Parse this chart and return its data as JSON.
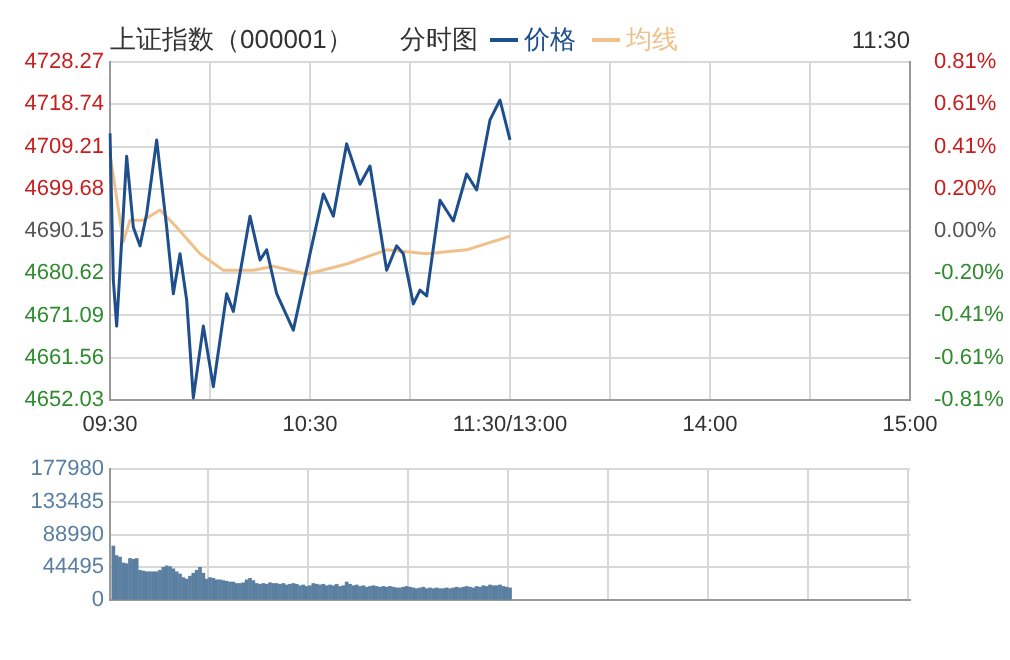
{
  "chart_data": [
    {
      "type": "line",
      "title": "上证指数（000001）",
      "subtitle": "分时图",
      "annotations": [
        "11:30"
      ],
      "legend": "top",
      "grid": true,
      "marker": "none",
      "line_style": "solid",
      "categories": [
        "09:30",
        null,
        null,
        null,
        null,
        null,
        null,
        null,
        null,
        null,
        null,
        null,
        null,
        null,
        null,
        null,
        null,
        null,
        null,
        null,
        null,
        null,
        null,
        null,
        null,
        null,
        null,
        null,
        null,
        null,
        null,
        null,
        null,
        null,
        null,
        null,
        null,
        null,
        null,
        null,
        null,
        null,
        null,
        null,
        null,
        null,
        null,
        null,
        null,
        null,
        null,
        null,
        null,
        null,
        null,
        null,
        null,
        null,
        null,
        null,
        "10:30",
        null,
        null,
        null,
        null,
        null,
        null,
        null,
        null,
        null,
        null,
        null,
        null,
        null,
        null,
        null,
        null,
        null,
        null,
        null,
        null,
        null,
        null,
        null,
        null,
        null,
        null,
        null,
        null,
        null,
        null,
        null,
        null,
        null,
        null,
        null,
        null,
        null,
        null,
        null,
        null,
        null,
        null,
        null,
        null,
        null,
        null,
        null,
        null,
        null,
        null,
        null,
        null,
        null,
        null,
        null,
        null,
        null,
        null,
        null,
        "11:30/13:00",
        null,
        null,
        null,
        null,
        null,
        null,
        null,
        null,
        null,
        null,
        null,
        null,
        null,
        null,
        null,
        null,
        null,
        null,
        null,
        null,
        null,
        null,
        null,
        null,
        null,
        null,
        null,
        null,
        null,
        null,
        null,
        null,
        null,
        null,
        null,
        null,
        null,
        null,
        null,
        null,
        null,
        null,
        null,
        null,
        null,
        null,
        null,
        null,
        null,
        null,
        null,
        null,
        null,
        null,
        null,
        null,
        null,
        null,
        null,
        "14:00",
        null,
        null,
        null,
        null,
        null,
        null,
        null,
        null,
        null,
        null,
        null,
        null,
        null,
        null,
        null,
        null,
        null,
        null,
        null,
        null,
        null,
        null,
        null,
        null,
        null,
        null,
        null,
        null,
        null,
        null,
        null,
        null,
        null,
        null,
        null,
        null,
        null,
        null,
        null,
        null,
        null,
        null,
        null,
        null,
        null,
        null,
        null,
        null,
        null,
        null,
        null,
        null,
        null,
        null,
        null,
        null,
        null,
        null,
        null,
        "15:00"
      ],
      "ylim": [
        4652.03,
        4728.27
      ],
      "yticks": [
        4652.03,
        4661.56,
        4671.09,
        4680.62,
        4690.15,
        4699.68,
        4709.21,
        4718.74,
        4728.27
      ],
      "y2lim": [
        -0.813,
        0.813
      ],
      "y2ticks": [
        {
          "value": -0.813,
          "label": "-0.81%"
        },
        {
          "value": -0.61,
          "label": "-0.61%"
        },
        {
          "value": -0.406,
          "label": "-0.41%"
        },
        {
          "value": -0.203,
          "label": "-0.20%"
        },
        {
          "value": 0,
          "label": "0.00%"
        },
        {
          "value": 0.203,
          "label": "0.20%"
        },
        {
          "value": 0.406,
          "label": "0.41%"
        },
        {
          "value": 0.61,
          "label": "0.61%"
        },
        {
          "value": 0.813,
          "label": "0.81%"
        }
      ],
      "series": [
        {
          "name": "价格",
          "color": "#1f4e8c",
          "values": [
            4712.2,
            4679.1,
            4668.7,
            null,
            null,
            4707,
            null,
            4691,
            null,
            4686.8,
            null,
            4694,
            null,
            null,
            4710.7,
            null,
            null,
            4691,
            null,
            4676,
            null,
            4685,
            null,
            4674.6,
            null,
            4652.5,
            null,
            null,
            4668.7,
            null,
            null,
            4655,
            null,
            null,
            null,
            4676,
            null,
            4672,
            null,
            null,
            null,
            null,
            4693.5,
            null,
            null,
            4683.6,
            null,
            4685.9,
            null,
            null,
            4676,
            null,
            null,
            null,
            null,
            4667.8,
            null,
            null,
            null,
            null,
            4685,
            null,
            null,
            null,
            4698.5,
            null,
            null,
            4693.5,
            null,
            null,
            null,
            4709.8,
            null,
            null,
            null,
            4700.7,
            null,
            null,
            4704.8,
            null,
            null,
            null,
            null,
            4681.3,
            null,
            null,
            4686.8,
            null,
            4685,
            null,
            null,
            4673.7,
            null,
            4676.8,
            null,
            4675.5,
            null,
            null,
            null,
            4697.1,
            null,
            null,
            null,
            4692.4,
            null,
            null,
            null,
            4703,
            null,
            null,
            4699.4,
            null,
            null,
            null,
            4715.2,
            null,
            null,
            4719.7,
            null,
            null,
            4710.7,
            null,
            null,
            null,
            null,
            null,
            null,
            null,
            null,
            null,
            null,
            null,
            null,
            null,
            null,
            null,
            null,
            null,
            null,
            null,
            null,
            null,
            null,
            null,
            null,
            null,
            null,
            null,
            null,
            null,
            null,
            null,
            null,
            null,
            null,
            null,
            null,
            null,
            null,
            null,
            null,
            null,
            null,
            null,
            null,
            null,
            null,
            null,
            null,
            null,
            null,
            null,
            null,
            null,
            null,
            null,
            null,
            null,
            null,
            null,
            null,
            null,
            null,
            null,
            null,
            null,
            null,
            null,
            null,
            null,
            null,
            null,
            null,
            null,
            null,
            null,
            null,
            null,
            null,
            null,
            null,
            null,
            null,
            null,
            null,
            null,
            null,
            null,
            null,
            null,
            null,
            null,
            null,
            null,
            null,
            null,
            null,
            null,
            null,
            null,
            null,
            null,
            null,
            null,
            null,
            null,
            null,
            null,
            null,
            null,
            null,
            null,
            null,
            null,
            null,
            null,
            null,
            null,
            null,
            null,
            null
          ]
        },
        {
          "name": "均线",
          "color": "#f0c08a",
          "values": [
            4707.5,
            null,
            null,
            null,
            4687.7,
            null,
            4692.6,
            null,
            null,
            null,
            4692.6,
            null,
            null,
            null,
            null,
            4694.9,
            null,
            null,
            null,
            null,
            4691,
            null,
            null,
            null,
            null,
            null,
            null,
            4685,
            null,
            null,
            null,
            null,
            null,
            null,
            4681.3,
            null,
            null,
            null,
            null,
            null,
            null,
            null,
            null,
            4681.3,
            null,
            null,
            null,
            null,
            null,
            4682.2,
            null,
            null,
            null,
            null,
            null,
            null,
            null,
            null,
            null,
            4680.4,
            null,
            null,
            null,
            null,
            null,
            null,
            null,
            null,
            null,
            null,
            null,
            4682.7,
            null,
            null,
            null,
            null,
            null,
            null,
            null,
            null,
            null,
            null,
            null,
            4685.9,
            null,
            null,
            null,
            null,
            null,
            null,
            null,
            null,
            null,
            null,
            null,
            4685,
            null,
            null,
            null,
            null,
            null,
            null,
            null,
            null,
            null,
            null,
            null,
            4685.9,
            null,
            null,
            null,
            null,
            null,
            null,
            null,
            null,
            null,
            null,
            null,
            null,
            4689,
            null,
            null,
            null,
            null,
            null,
            null,
            null,
            null,
            null,
            null,
            null,
            null,
            null,
            null,
            null,
            null,
            null,
            null,
            null,
            null,
            null,
            null,
            null,
            null,
            null,
            null,
            null,
            null,
            null,
            null,
            null,
            null,
            null,
            null,
            null,
            null,
            null,
            null,
            null,
            null,
            null,
            null,
            null,
            null,
            null,
            null,
            null,
            null,
            null,
            null,
            null,
            null,
            null,
            null,
            null,
            null,
            null,
            null,
            null,
            null,
            null,
            null,
            null,
            null,
            null,
            null,
            null,
            null,
            null,
            null,
            null,
            null,
            null,
            null,
            null,
            null,
            null,
            null,
            null,
            null,
            null,
            null,
            null,
            null,
            null,
            null,
            null,
            null,
            null,
            null,
            null,
            null,
            null,
            null,
            null,
            null,
            null,
            null,
            null,
            null,
            null,
            null,
            null,
            null,
            null,
            null,
            null,
            null,
            null,
            null,
            null,
            null,
            null,
            null,
            null,
            null,
            null,
            null,
            null,
            null
          ]
        }
      ]
    },
    {
      "type": "bar",
      "grid": true,
      "tick_labels": "y",
      "color": "#5b7fa0",
      "categories": [
        null,
        null,
        null,
        null,
        null,
        null,
        null,
        null,
        null,
        null,
        null,
        null,
        null,
        null,
        null,
        null,
        null,
        null,
        null,
        null,
        null,
        null,
        null,
        null,
        null,
        null,
        null,
        null,
        null,
        null,
        null,
        null,
        null,
        null,
        null,
        null,
        null,
        null,
        null,
        null,
        null,
        null,
        null,
        null,
        null,
        null,
        null,
        null,
        null,
        null,
        null,
        null,
        null,
        null,
        null,
        null,
        null,
        null,
        null,
        null,
        null,
        null,
        null,
        null,
        null,
        null,
        null,
        null,
        null,
        null,
        null,
        null,
        null,
        null,
        null,
        null,
        null,
        null,
        null,
        null,
        null,
        null,
        null,
        null,
        null,
        null,
        null,
        null,
        null,
        null,
        null,
        null,
        null,
        null,
        null,
        null,
        null,
        null,
        null,
        null,
        null,
        null,
        null,
        null,
        null,
        null,
        null,
        null,
        null,
        null,
        null,
        null,
        null,
        null,
        null,
        null,
        null,
        null,
        null,
        null,
        null,
        null,
        null,
        null,
        null,
        null,
        null,
        null,
        null,
        null,
        null,
        null,
        null,
        null,
        null,
        null,
        null,
        null,
        null,
        null,
        null,
        null,
        null,
        null,
        null,
        null,
        null,
        null,
        null,
        null,
        null,
        null,
        null,
        null,
        null,
        null,
        null,
        null,
        null,
        null,
        null,
        null,
        null,
        null,
        null,
        null,
        null,
        null,
        null,
        null,
        null,
        null,
        null,
        null,
        null,
        null,
        null,
        null,
        null,
        null,
        null,
        null,
        null,
        null,
        null,
        null,
        null,
        null,
        null,
        null,
        null,
        null,
        null,
        null,
        null,
        null,
        null,
        null,
        null,
        null,
        null,
        null,
        null,
        null,
        null,
        null,
        null,
        null,
        null,
        null,
        null,
        null,
        null,
        null,
        null,
        null,
        null,
        null,
        null,
        null,
        null,
        null,
        null,
        null,
        null,
        null,
        null,
        null,
        null,
        null,
        null,
        null,
        null,
        null,
        null,
        null,
        null,
        null,
        null,
        null,
        null
      ],
      "ylim": [
        0,
        177980
      ],
      "yticks": [
        0,
        44495,
        88990,
        133485,
        177980
      ],
      "values": [
        null,
        73000,
        60000,
        58000,
        50000,
        49000,
        56000,
        55000,
        56000,
        40000,
        39000,
        38000,
        38000,
        38000,
        38000,
        40000,
        44000,
        46000,
        45000,
        42000,
        38000,
        35000,
        30000,
        28000,
        32000,
        36000,
        40000,
        44000,
        36000,
        28000,
        30000,
        29000,
        27000,
        27000,
        26000,
        25000,
        24000,
        24000,
        22000,
        22000,
        23000,
        27000,
        29000,
        26000,
        22000,
        21000,
        22000,
        21000,
        23000,
        22000,
        22000,
        21000,
        22000,
        20000,
        21000,
        22000,
        21000,
        19000,
        20000,
        18000,
        19000,
        22000,
        21000,
        20000,
        21000,
        19000,
        20000,
        19000,
        21000,
        18000,
        19000,
        24000,
        21000,
        19000,
        20000,
        18000,
        19000,
        17000,
        18000,
        19000,
        18000,
        17000,
        18000,
        17000,
        18000,
        17000,
        16000,
        16000,
        17000,
        18000,
        17000,
        16000,
        15000,
        16000,
        17000,
        15000,
        16000,
        15000,
        16000,
        15000,
        15000,
        16000,
        15000,
        16000,
        17000,
        16000,
        17000,
        18000,
        17000,
        16000,
        18000,
        17000,
        19000,
        18000,
        20000,
        19000,
        19000,
        20000,
        18000,
        17000,
        16000,
        null,
        null,
        null,
        null,
        null,
        null,
        null,
        null,
        null,
        null,
        null,
        null,
        null,
        null,
        null,
        null,
        null,
        null,
        null,
        null,
        null,
        null,
        null,
        null,
        null,
        null,
        null,
        null,
        null,
        null,
        null,
        null,
        null,
        null,
        null,
        null,
        null,
        null,
        null,
        null,
        null,
        null,
        null,
        null,
        null,
        null,
        null,
        null,
        null,
        null,
        null,
        null,
        null,
        null,
        null,
        null,
        null,
        null,
        null,
        null,
        null,
        null,
        null,
        null,
        null,
        null,
        null,
        null,
        null,
        null,
        null,
        null,
        null,
        null,
        null,
        null,
        null,
        null,
        null,
        null,
        null,
        null,
        null,
        null,
        null,
        null,
        null,
        null,
        null,
        null,
        null,
        null,
        null,
        null,
        null,
        null,
        null,
        null,
        null,
        null,
        null,
        null,
        null,
        null,
        null,
        null,
        null,
        null,
        null,
        null,
        null,
        null,
        null,
        null,
        null,
        null,
        null,
        null,
        null,
        null
      ]
    }
  ]
}
